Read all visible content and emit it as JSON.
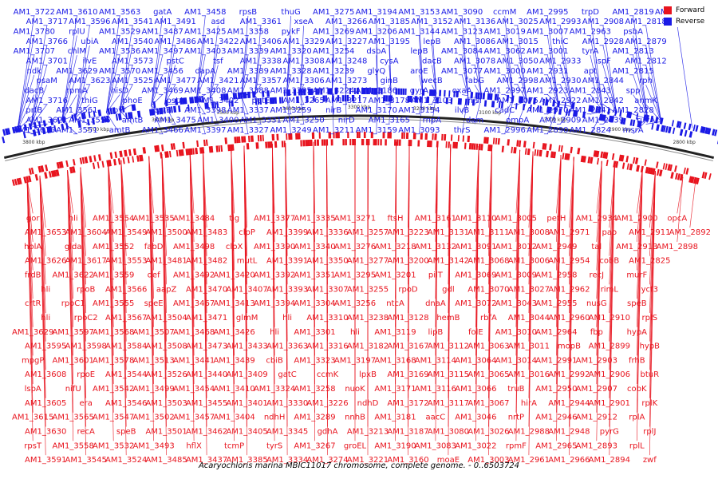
{
  "colors": {
    "forward": "#e8141e",
    "reverse": "#1a1ae6",
    "backbone": "#222222",
    "background": "#ffffff"
  },
  "legend": [
    {
      "label": "Forward",
      "color": "#e8141e"
    },
    {
      "label": "Reverse",
      "color": "#1a1ae6"
    }
  ],
  "caption": "Acaryochloris marina MBIC11017 chromosome, complete genome. - 0..6503724",
  "bp_ticks": [
    "3800 kbp",
    "3700 kbp",
    "3600 kbp",
    "3500 kbp",
    "3400 kbp",
    "3300 kbp",
    "3200 kbp",
    "3100 kbp",
    "3000 kbp",
    "2900 kbp",
    "2800 kbp"
  ],
  "reverse_labels": [
    "AM1_3722",
    "AM1_3717",
    "AM1_3780",
    "AM1_3766",
    "AM1_3707",
    "AM1_3701",
    "ndk",
    "psaM",
    "dacB",
    "AM1_3716",
    "prfB",
    "AM1_3621",
    "AM1_3616",
    "AM1_3610",
    "AM1_3596",
    "rplU",
    "ubiA",
    "chlM",
    "ilvE",
    "AM1_3629",
    "AM1_3623",
    "rpmA",
    "thiG",
    "AM1_3561",
    "AM1_3556",
    "AM1_3551",
    "AM1_3563",
    "AM1_3541",
    "AM1_3529",
    "AM1_3540",
    "AM1_3536",
    "AM1_3573",
    "AM1_3570",
    "AM1_3525",
    "hisD",
    "phoE",
    "pyr",
    "amtB",
    "amtB",
    "gatA",
    "AM1_3491",
    "AM1_3487",
    "AM1_3486",
    "AM1_3497",
    "pstC",
    "AM1_3456",
    "AM1_3477",
    "AM1_3469",
    "pstA",
    "pstB",
    "AM1_3475",
    "AM1_3466",
    "AM1_3458",
    "asd",
    "AM1_3425",
    "AM1_3422",
    "AM1_3403",
    "tsf",
    "dapA",
    "AM1_3421",
    "AM1_3408",
    "AM1_3402",
    "AM1_3398",
    "AM1_3400",
    "AM1_3397",
    "rpsB",
    "AM1_3361",
    "AM1_3358",
    "AM1_3406",
    "AM1_3339",
    "AM1_3338",
    "AM1_3389",
    "AM1_3357",
    "AM1_3388",
    "petE",
    "AM1_3337",
    "AM1_3331",
    "AM1_3327",
    "thuG",
    "xseA",
    "pykF",
    "AM1_3329",
    "AM1_3320",
    "AM1_3308",
    "AM1_3328",
    "AM1_3306",
    "AM1_3305",
    "AM1_3265",
    "AM1_3259",
    "AM1_3250",
    "AM1_3249",
    "AM1_3275",
    "AM1_3266",
    "AM1_3269",
    "AM1_3227",
    "AM1_3254",
    "AM1_3248",
    "AM1_3239",
    "AM1_3273",
    "AM1_3224",
    "AM1_3217",
    "nirB",
    "nirD",
    "AM1_3211",
    "AM1_3194",
    "AM1_3185",
    "AM1_3206",
    "AM1_3195",
    "dsbA",
    "cysA",
    "glyQ",
    "ginB",
    "AM1_3186",
    "AM1_3178",
    "AM1_3170",
    "AM1_3165",
    "AM1_3159",
    "AM1_3153",
    "AM1_3152",
    "AM1_3144",
    "lepB",
    "lepB",
    "dacB",
    "aroE",
    "wecB",
    "gyrA",
    "AM1_3103",
    "AM1_3154",
    "rnpA",
    "AM1_3093",
    "AM1_3090",
    "AM1_3136",
    "AM1_3123",
    "AM1_3086",
    "AM1_3084",
    "AM1_3078",
    "AM1_3077",
    "fabG",
    "oxaA",
    "hisI",
    "ilvB",
    "dam",
    "thrS",
    "ccmM",
    "AM1_3025",
    "AM1_3019",
    "AM1_3015",
    "AM1_3062",
    "AM1_3050",
    "AM1_3000",
    "AM1_2998",
    "AM1_2997",
    "AM1_3075",
    "cadC",
    "ompA",
    "AM1_2996",
    "AM1_2995",
    "AM1_2993",
    "AM1_3007",
    "thiC",
    "AM1_3001",
    "AM1_2933",
    "AM1_2931",
    "AM1_2930",
    "AM1_2923",
    "AM1_2922",
    "AM1_2970",
    "AM1_2909",
    "AM1_2890",
    "trpD",
    "AM1_2908",
    "AM1_2963",
    "AM1_2928",
    "tyrA",
    "ispF",
    "apt",
    "AM1_2844",
    "AM1_2843",
    "AM1_2842",
    "AM1_2841",
    "AM1_2839",
    "AM1_2824",
    "AM1_2819",
    "AM1_2818",
    "psbA",
    "AM1_2879",
    "AM1_2813",
    "AM1_2812",
    "AM1_2815",
    "rph",
    "spp",
    "anmK",
    "AM1_2828",
    "ruvA",
    "msrA",
    "AM1_2759"
  ],
  "forward_labels": [
    "gor",
    "AM1_3653",
    "holA",
    "AM1_3626",
    "frdB",
    "hli",
    "crtR",
    "hli",
    "AM1_3629",
    "AM1_3595",
    "mpgP",
    "AM1_3608",
    "lspA",
    "AM1_3605",
    "AM1_3615",
    "AM1_3630",
    "rpsT",
    "AM1_3591",
    "hli",
    "AM1_3604",
    "glda",
    "AM1_3617",
    "AM1_3622",
    "rpoB",
    "rpoC1",
    "rpoC2",
    "AM1_3597",
    "AM1_3598",
    "AM1_3601",
    "rpoE",
    "nifU",
    "era",
    "AM1_3565",
    "recA",
    "AM1_3558",
    "AM1_3545",
    "AM1_3554",
    "AM1_3549",
    "AM1_3552",
    "AM1_3553",
    "AM1_3559",
    "AM1_3566",
    "AM1_3555",
    "AM1_3567",
    "AM1_3568",
    "AM1_3584",
    "AM1_3578",
    "AM1_3544",
    "AM1_3542",
    "AM1_3546",
    "AM1_3547",
    "speB",
    "AM1_3532",
    "AM1_3524",
    "AM1_3535",
    "AM1_3500",
    "fabD",
    "AM1_3481",
    "def",
    "aapZ",
    "speE",
    "AM1_3504",
    "AM1_3507",
    "AM1_3508",
    "AM1_3513",
    "AM1_3526",
    "AM1_3499",
    "AM1_3503",
    "AM1_3502",
    "AM1_3501",
    "AM1_3493",
    "AM1_3485",
    "AM1_3484",
    "AM1_3483",
    "AM1_3498",
    "AM1_3482",
    "AM1_3492",
    "AM1_3470",
    "AM1_3467",
    "AM1_3471",
    "AM1_3468",
    "AM1_3473",
    "AM1_3441",
    "AM1_3440",
    "AM1_3454",
    "AM1_3455",
    "AM1_3457",
    "AM1_3462",
    "hflX",
    "AM1_3437",
    "tig",
    "clpP",
    "clpX",
    "mutL",
    "AM1_3420",
    "AM1_3407",
    "AM1_3413",
    "glmM",
    "AM1_3426",
    "AM1_3433",
    "AM1_3439",
    "AM1_3409",
    "AM1_3410",
    "AM1_3401",
    "AM1_3404",
    "AM1_3405",
    "tcmP",
    "AM1_3385",
    "AM1_3377",
    "AM1_3399",
    "AM1_3390",
    "AM1_3391",
    "AM1_3392",
    "AM1_3393",
    "AM1_3394",
    "hli",
    "hli",
    "AM1_3363",
    "cbiB",
    "gatC",
    "AM1_3324",
    "AM1_3330",
    "ndhH",
    "AM1_3345",
    "tyrS",
    "AM1_3334",
    "AM1_3335",
    "AM1_3336",
    "AM1_3340",
    "AM1_3350",
    "AM1_3351",
    "AM1_3307",
    "AM1_3304",
    "AM1_3310",
    "AM1_3301",
    "AM1_3316",
    "AM1_3323",
    "ccmK",
    "AM1_3258",
    "AM1_3226",
    "AM1_3289",
    "gdhA",
    "AM1_3267",
    "AM1_3274",
    "AM1_3271",
    "AM1_3257",
    "AM1_3276",
    "AM1_3277",
    "AM1_3295",
    "AM1_3255",
    "AM1_3256",
    "AM1_3238",
    "hli",
    "AM1_3182",
    "AM1_3197",
    "lpxB",
    "nuoK",
    "ndhD",
    "nnhB",
    "AM1_3213",
    "groEL",
    "AM1_3221",
    "ftsH",
    "AM1_3223",
    "AM1_3218",
    "AM1_3200",
    "AM1_3201",
    "rpoD",
    "ntcA",
    "AM1_3128",
    "AM1_3119",
    "AM1_3167",
    "AM1_3168",
    "AM1_3169",
    "AM1_3171",
    "AM1_3172",
    "AM1_3181",
    "AM1_3187",
    "AM1_3190",
    "AM1_3160",
    "AM1_3161",
    "AM1_3131",
    "AM1_3132",
    "AM1_3142",
    "pilT",
    "gdl",
    "dnaA",
    "hemB",
    "lipB",
    "AM1_3112",
    "AM1_3114",
    "AM1_3115",
    "AM1_3116",
    "AM1_3117",
    "aacC",
    "AM1_3080",
    "AM1_3083",
    "moaE",
    "AM1_3110",
    "AM1_3111",
    "AM1_3091",
    "AM1_3068",
    "AM1_3069",
    "AM1_3070",
    "AM1_3072",
    "rbfA",
    "folE",
    "AM1_3063",
    "AM1_3064",
    "AM1_3065",
    "AM1_3066",
    "AM1_3067",
    "AM1_3046",
    "AM1_3026",
    "AM1_3022",
    "AM1_3003",
    "AM1_3005",
    "AM1_3008",
    "AM1_3012",
    "AM1_3006",
    "AM1_3009",
    "AM1_3027",
    "AM1_3043",
    "AM1_3044",
    "AM1_3010",
    "AM1_3011",
    "AM1_3014",
    "AM1_3016",
    "truB",
    "hirA",
    "nrtP",
    "AM1_2988",
    "rpmF",
    "AM1_2961",
    "petH",
    "AM1_2971",
    "AM1_2949",
    "AM1_2954",
    "AM1_2958",
    "AM1_2962",
    "AM1_2955",
    "AM1_2960",
    "AM1_2964",
    "mopB",
    "AM1_2991",
    "AM1_2992",
    "AM1_2950",
    "AM1_2944",
    "AM1_2946",
    "AM1_2948",
    "AM1_2965",
    "AM1_2966",
    "AM1_2934",
    "pao",
    "tal",
    "cobB",
    "recJ",
    "rimL",
    "nusG",
    "AM1_2910",
    "fbp",
    "AM1_2899",
    "AM1_2903",
    "AM1_2906",
    "AM1_2907",
    "AM1_2901",
    "AM1_2912",
    "pyrG",
    "AM1_2893",
    "AM1_2894",
    "AM1_2900",
    "AM1_2911",
    "AM1_2913",
    "AM1_2825",
    "murF",
    "ycf3",
    "speB",
    "rplS",
    "hypA",
    "hypB",
    "frhB",
    "btuR",
    "cobK",
    "rplK",
    "rplA",
    "rplJ",
    "rplL",
    "zwf",
    "opcA",
    "AM1_2892",
    "AM1_2898"
  ]
}
